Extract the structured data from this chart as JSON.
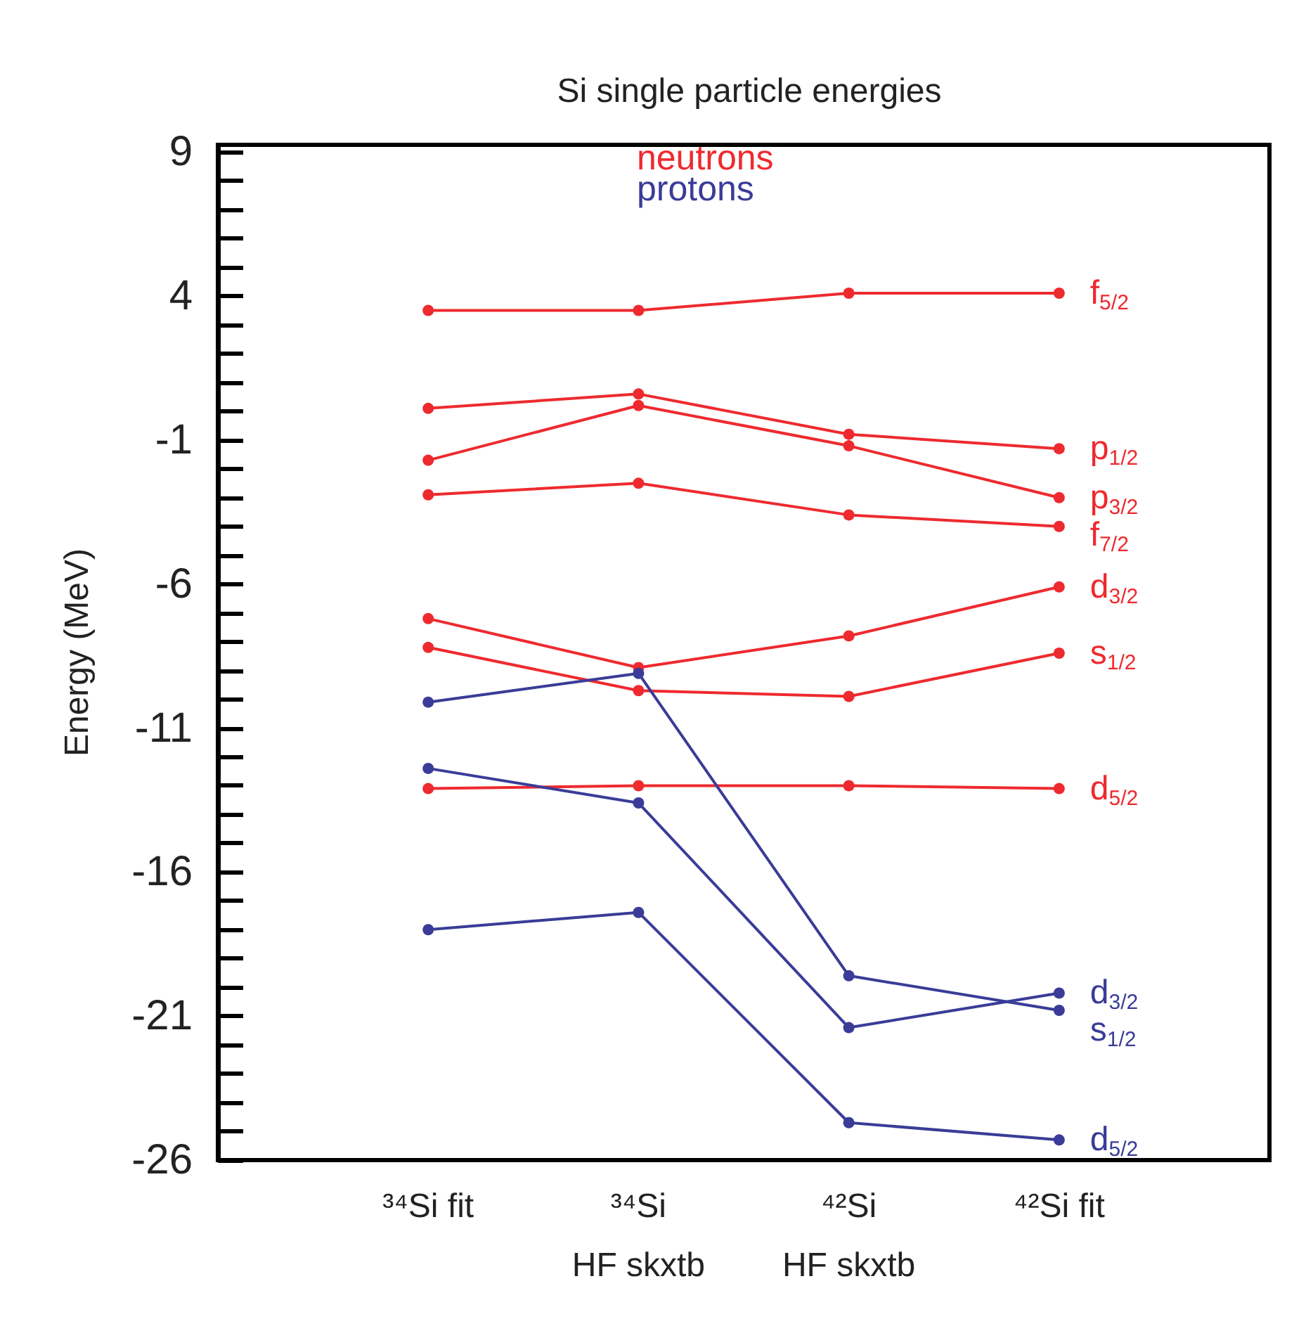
{
  "chart_data": {
    "type": "line",
    "title": "Si single particle energies",
    "ylabel": "Energy (MeV)",
    "categories": [
      "³⁴Si fit",
      "³⁴Si\nHF skxtb",
      "⁴²Si\nHF skxtb",
      "⁴²Si fit"
    ],
    "ylim": [
      -26,
      9.25
    ],
    "yticks": [
      -26,
      -21,
      -16,
      -11,
      -6,
      -1,
      4,
      9
    ],
    "grid": false,
    "legend": "right",
    "marker": "circle",
    "line_style": "solid",
    "annotations": [
      "neutrons",
      "protons"
    ],
    "series": [
      {
        "name": "f$_{5/2}$",
        "color": "#ee2a2f",
        "values": [
          3.5,
          3.5,
          4.1,
          4.1
        ]
      },
      {
        "name": "p$_{1/2}$",
        "color": "#ee2a2f",
        "values": [
          0.1,
          0.6,
          -0.8,
          -1.3
        ]
      },
      {
        "name": "p$_{3/2}$",
        "color": "#ee2a2f",
        "values": [
          -1.7,
          0.2,
          -1.2,
          -3.0
        ]
      },
      {
        "name": "f$_{7/2}$",
        "color": "#ee2a2f",
        "values": [
          -2.9,
          -2.5,
          -3.6,
          -4.0
        ]
      },
      {
        "name": "d$_{3/2}$",
        "color": "#ee2a2f",
        "values": [
          -7.2,
          -8.9,
          -7.8,
          -6.1
        ]
      },
      {
        "name": "s$_{1/2}$",
        "color": "#ee2a2f",
        "values": [
          -8.2,
          -9.7,
          -9.9,
          -8.4
        ]
      },
      {
        "name": "d$_{5/2}$",
        "color": "#ee2a2f",
        "values": [
          -13.1,
          -13.0,
          -13.0,
          -13.1
        ]
      },
      {
        "name": "s$_{1/2}$",
        "color": "#3a3c98",
        "values": [
          -10.1,
          -9.1,
          -19.6,
          -20.8
        ]
      },
      {
        "name": "d$_{3/2}$",
        "color": "#3a3c98",
        "values": [
          -12.4,
          -13.6,
          -21.4,
          -20.2
        ]
      },
      {
        "name": "d$_{5/2}$",
        "color": "#3a3c98",
        "values": [
          -18.0,
          -17.4,
          -24.7,
          -25.3
        ]
      }
    ]
  }
}
